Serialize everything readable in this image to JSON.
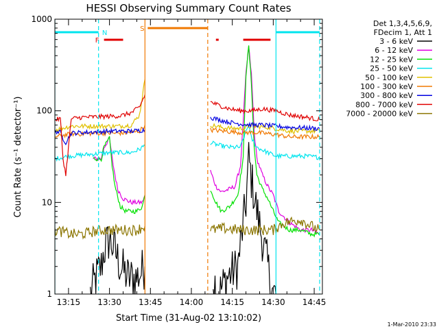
{
  "chart_data": {
    "type": "line",
    "title": "HESSI Observing Summary Count Rates",
    "xlabel": "Start Time (31-Aug-02 13:10:02)",
    "ylabel": "Count Rate (s⁻¹ detector⁻¹)",
    "yscale": "log",
    "ylim": [
      1,
      1000
    ],
    "xlim": [
      "13:10",
      "14:48"
    ],
    "yticks": [
      "1",
      "10",
      "100",
      "1000"
    ],
    "xticks": [
      "13:15",
      "13:30",
      "13:45",
      "14:00",
      "14:15",
      "14:30",
      "14:45"
    ],
    "legend_position": "right",
    "legend_header": [
      "Det 1,3,4,5,6,9,",
      "FDecim 1, Att 1"
    ],
    "footer": "1-Mar-2010 23:33",
    "data_gaps": [
      [
        "13:44",
        "14:07"
      ]
    ],
    "flags": [
      {
        "label": "N",
        "color": "#00e5ee",
        "intervals": [
          [
            "13:10",
            "13:26"
          ],
          [
            "14:31",
            "14:47"
          ]
        ]
      },
      {
        "label": "F",
        "color": "#e00000",
        "intervals": [
          [
            "13:28",
            "13:35"
          ],
          [
            "14:09",
            "14:10"
          ],
          [
            "14:19",
            "14:29"
          ]
        ]
      },
      {
        "label": "S",
        "color": "#f07800",
        "intervals": [
          [
            "13:44",
            "14:06"
          ]
        ]
      }
    ],
    "markers": [
      {
        "time": "13:10",
        "color": "#00e5ee",
        "style": "solid"
      },
      {
        "time": "13:26",
        "color": "#00e5ee",
        "style": "dashed"
      },
      {
        "time": "13:43",
        "color": "#f07800",
        "style": "solid"
      },
      {
        "time": "14:06",
        "color": "#f07800",
        "style": "dashed"
      },
      {
        "time": "14:31",
        "color": "#00e5ee",
        "style": "solid"
      },
      {
        "time": "14:47",
        "color": "#00e5ee",
        "style": "dashed"
      }
    ],
    "series": [
      {
        "name": "3 - 6 keV",
        "color": "#000000",
        "points": [
          [
            "13:23",
            1
          ],
          [
            "13:25",
            1.5
          ],
          [
            "13:27",
            2
          ],
          [
            "13:28",
            3
          ],
          [
            "13:30",
            4
          ],
          [
            "13:32",
            3
          ],
          [
            "13:34",
            2
          ],
          [
            "13:37",
            1.5
          ],
          [
            "13:40",
            1.5
          ],
          [
            "13:43",
            2
          ],
          "gap",
          [
            "14:08",
            1.5
          ],
          [
            "14:10",
            1
          ],
          [
            "14:13",
            1.5
          ],
          [
            "14:17",
            2
          ],
          [
            "14:20",
            10
          ],
          [
            "14:21",
            30
          ],
          [
            "14:22",
            18
          ],
          [
            "14:23",
            12
          ],
          [
            "14:24",
            8
          ],
          [
            "14:26",
            4
          ],
          [
            "14:28",
            2
          ],
          [
            "14:30",
            1
          ],
          [
            "14:31",
            1
          ]
        ]
      },
      {
        "name": "6 - 12 keV",
        "color": "#e000e0",
        "points": [
          [
            "13:24",
            30
          ],
          [
            "13:27",
            30
          ],
          [
            "13:28",
            40
          ],
          [
            "13:30",
            50
          ],
          [
            "13:31",
            30
          ],
          [
            "13:32",
            20
          ],
          [
            "13:33",
            14
          ],
          [
            "13:35",
            11
          ],
          [
            "13:38",
            10
          ],
          [
            "13:40",
            10
          ],
          [
            "13:42",
            10
          ],
          [
            "13:43",
            12
          ],
          "gap",
          [
            "14:07",
            22
          ],
          [
            "14:09",
            15
          ],
          [
            "14:11",
            13
          ],
          [
            "14:14",
            14
          ],
          [
            "14:16",
            15
          ],
          [
            "14:18",
            25
          ],
          [
            "14:20",
            250
          ],
          [
            "14:21",
            500
          ],
          [
            "14:22",
            250
          ],
          [
            "14:23",
            60
          ],
          [
            "14:24",
            30
          ],
          [
            "14:26",
            20
          ],
          [
            "14:28",
            15
          ],
          [
            "14:30",
            12
          ],
          [
            "14:32",
            8
          ],
          [
            "14:36",
            6
          ],
          [
            "14:40",
            5
          ],
          [
            "14:44",
            5
          ],
          [
            "14:47",
            4.5
          ]
        ]
      },
      {
        "name": "12 - 25 keV",
        "color": "#00e000",
        "points": [
          [
            "13:24",
            30
          ],
          [
            "13:27",
            30
          ],
          [
            "13:28",
            40
          ],
          [
            "13:30",
            50
          ],
          [
            "13:31",
            25
          ],
          [
            "13:32",
            15
          ],
          [
            "13:34",
            9
          ],
          [
            "13:36",
            8
          ],
          [
            "13:38",
            8
          ],
          [
            "13:40",
            8
          ],
          [
            "13:42",
            9
          ],
          [
            "13:43",
            12
          ],
          "gap",
          [
            "14:07",
            14
          ],
          [
            "14:09",
            10
          ],
          [
            "14:11",
            8
          ],
          [
            "14:14",
            9
          ],
          [
            "14:17",
            12
          ],
          [
            "14:19",
            30
          ],
          [
            "14:20",
            250
          ],
          [
            "14:21",
            500
          ],
          [
            "14:22",
            200
          ],
          [
            "14:23",
            40
          ],
          [
            "14:24",
            20
          ],
          [
            "14:26",
            14
          ],
          [
            "14:28",
            11
          ],
          [
            "14:30",
            8
          ],
          [
            "14:32",
            6
          ],
          [
            "14:36",
            5
          ],
          [
            "14:40",
            5
          ],
          [
            "14:44",
            4.5
          ],
          [
            "14:47",
            4.5
          ]
        ]
      },
      {
        "name": "25 - 50 keV",
        "color": "#00e5ee",
        "points": [
          [
            "13:10",
            30
          ],
          [
            "13:15",
            32
          ],
          [
            "13:20",
            33
          ],
          [
            "13:26",
            34
          ],
          [
            "13:30",
            35
          ],
          [
            "13:34",
            35
          ],
          [
            "13:38",
            35
          ],
          [
            "13:41",
            38
          ],
          [
            "13:43",
            42
          ],
          "gap",
          [
            "14:07",
            45
          ],
          [
            "14:10",
            42
          ],
          [
            "14:14",
            40
          ],
          [
            "14:18",
            40
          ],
          [
            "14:20",
            60
          ],
          [
            "14:21",
            70
          ],
          [
            "14:22",
            50
          ],
          [
            "14:24",
            40
          ],
          [
            "14:28",
            35
          ],
          [
            "14:31",
            32
          ],
          [
            "14:36",
            32
          ],
          [
            "14:42",
            32
          ],
          [
            "14:47",
            31
          ]
        ]
      },
      {
        "name": "50 - 100 keV",
        "color": "#e0c000",
        "points": [
          [
            "13:10",
            62
          ],
          [
            "13:16",
            68
          ],
          [
            "13:20",
            68
          ],
          [
            "13:26",
            68
          ],
          [
            "13:30",
            68
          ],
          [
            "13:34",
            68
          ],
          [
            "13:38",
            70
          ],
          [
            "13:41",
            90
          ],
          [
            "13:43",
            220
          ],
          "gap",
          [
            "14:07",
            70
          ],
          [
            "14:12",
            65
          ],
          [
            "14:18",
            64
          ],
          [
            "14:22",
            68
          ],
          [
            "14:28",
            66
          ],
          [
            "14:31",
            64
          ],
          [
            "14:36",
            60
          ],
          [
            "14:42",
            60
          ],
          [
            "14:47",
            60
          ]
        ]
      },
      {
        "name": "100 - 300 keV",
        "color": "#f07800",
        "points": [
          [
            "13:10",
            52
          ],
          [
            "13:16",
            56
          ],
          [
            "13:20",
            56
          ],
          [
            "13:26",
            57
          ],
          [
            "13:30",
            57
          ],
          [
            "13:34",
            57
          ],
          [
            "13:38",
            58
          ],
          [
            "13:41",
            60
          ],
          [
            "13:43",
            70
          ],
          "gap",
          [
            "14:07",
            62
          ],
          [
            "14:12",
            60
          ],
          [
            "14:18",
            58
          ],
          [
            "14:24",
            58
          ],
          [
            "14:31",
            55
          ],
          [
            "14:36",
            52
          ],
          [
            "14:42",
            52
          ],
          [
            "14:47",
            52
          ]
        ]
      },
      {
        "name": "300 - 800 keV",
        "color": "#0000e0",
        "points": [
          [
            "13:10",
            60
          ],
          [
            "13:12",
            58
          ],
          [
            "13:13",
            50
          ],
          [
            "13:14",
            45
          ],
          [
            "13:16",
            57
          ],
          [
            "13:20",
            58
          ],
          [
            "13:26",
            59
          ],
          [
            "13:30",
            60
          ],
          [
            "13:34",
            60
          ],
          [
            "13:38",
            60
          ],
          [
            "13:41",
            61
          ],
          [
            "13:43",
            62
          ],
          "gap",
          [
            "14:07",
            85
          ],
          [
            "14:10",
            80
          ],
          [
            "14:14",
            75
          ],
          [
            "14:18",
            72
          ],
          [
            "14:22",
            70
          ],
          [
            "14:26",
            70
          ],
          [
            "14:31",
            68
          ],
          [
            "14:36",
            66
          ],
          [
            "14:42",
            65
          ],
          [
            "14:47",
            64
          ]
        ]
      },
      {
        "name": "800 - 7000 keV",
        "color": "#e00000",
        "points": [
          [
            "13:10",
            80
          ],
          [
            "13:12",
            82
          ],
          [
            "13:13",
            30
          ],
          [
            "13:14",
            20
          ],
          [
            "13:16",
            82
          ],
          [
            "13:20",
            85
          ],
          [
            "13:26",
            86
          ],
          [
            "13:30",
            87
          ],
          [
            "13:34",
            88
          ],
          [
            "13:38",
            95
          ],
          [
            "13:41",
            110
          ],
          [
            "13:43",
            150
          ],
          "gap",
          [
            "14:07",
            125
          ],
          [
            "14:10",
            115
          ],
          [
            "14:14",
            105
          ],
          [
            "14:18",
            100
          ],
          [
            "14:22",
            100
          ],
          [
            "14:26",
            105
          ],
          [
            "14:31",
            100
          ],
          [
            "14:36",
            90
          ],
          [
            "14:42",
            85
          ],
          [
            "14:47",
            80
          ]
        ]
      },
      {
        "name": "7000 - 20000 keV",
        "color": "#8b7500",
        "points": [
          [
            "13:10",
            5
          ],
          [
            "13:16",
            4.5
          ],
          [
            "13:20",
            4.5
          ],
          [
            "13:24",
            4.8
          ],
          [
            "13:28",
            5
          ],
          [
            "13:32",
            5
          ],
          [
            "13:36",
            5
          ],
          [
            "13:40",
            5
          ],
          [
            "13:43",
            5.5
          ],
          "gap",
          [
            "14:07",
            5
          ],
          [
            "14:12",
            5.2
          ],
          [
            "14:18",
            5
          ],
          [
            "14:24",
            5
          ],
          [
            "14:30",
            5
          ],
          [
            "14:34",
            6
          ],
          [
            "14:40",
            6.5
          ],
          [
            "14:44",
            5.5
          ],
          [
            "14:47",
            5
          ]
        ]
      }
    ]
  }
}
